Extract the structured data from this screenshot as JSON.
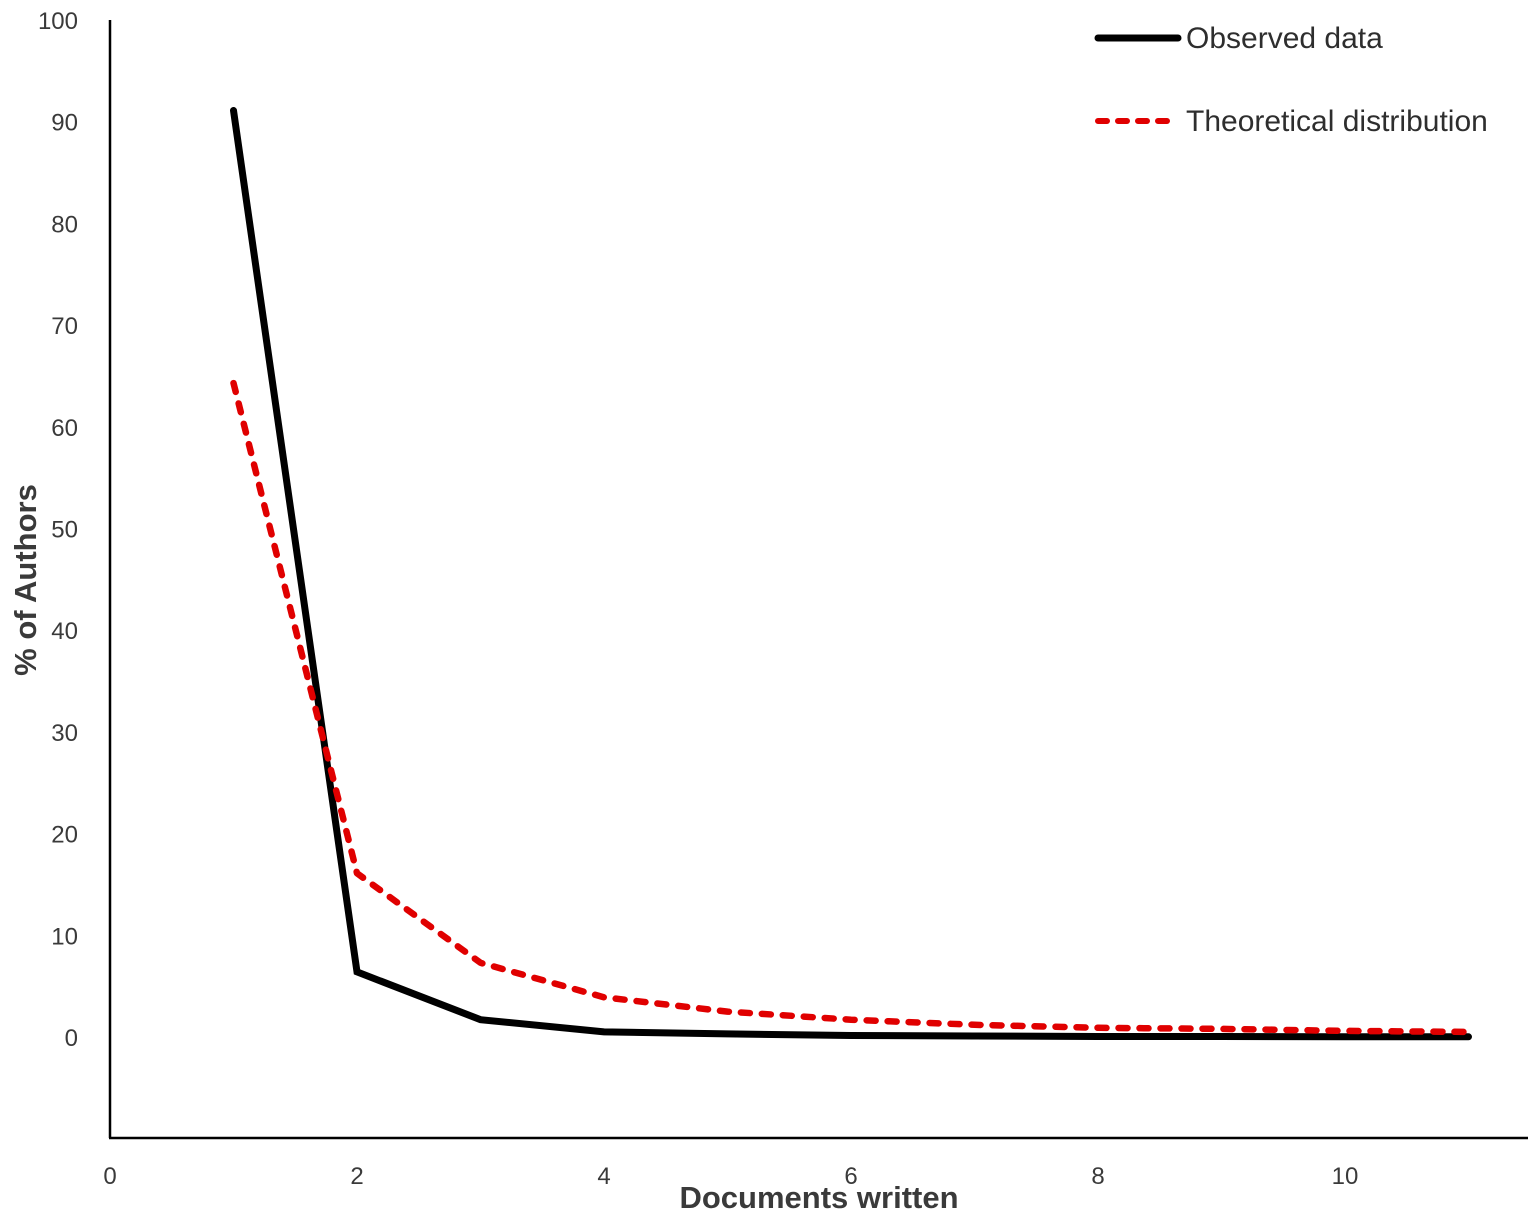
{
  "chart_data": {
    "type": "line",
    "title": "",
    "xlabel": "Documents written",
    "ylabel": "% of Authors",
    "xlim": [
      0,
      11.5
    ],
    "ylim": [
      -10,
      100
    ],
    "x_ticks": [
      0,
      2,
      4,
      6,
      8,
      10
    ],
    "y_ticks": [
      0,
      10,
      20,
      30,
      40,
      50,
      60,
      70,
      80,
      90,
      100
    ],
    "grid": false,
    "legend_position": "top-right",
    "x": [
      1,
      2,
      3,
      4,
      5,
      6,
      7,
      8,
      9,
      10,
      11
    ],
    "series": [
      {
        "name": "Observed data",
        "style": "solid",
        "color": "#000000",
        "values": [
          91.1,
          6.4,
          1.7,
          0.5,
          0.3,
          0.15,
          0.1,
          0.05,
          0.05,
          0.03,
          0.02
        ]
      },
      {
        "name": "Theoretical distribution",
        "style": "dashed",
        "color": "#e00000",
        "values": [
          64.3,
          16.1,
          7.3,
          3.9,
          2.5,
          1.7,
          1.2,
          0.9,
          0.8,
          0.6,
          0.5
        ]
      }
    ]
  },
  "labels": {
    "xlabel": "Documents written",
    "ylabel": "% of Authors",
    "legend": [
      "Observed data",
      "Theoretical distribution"
    ],
    "x_ticks": [
      "0",
      "2",
      "4",
      "6",
      "8",
      "10"
    ],
    "y_ticks": [
      "0",
      "10",
      "20",
      "30",
      "40",
      "50",
      "60",
      "70",
      "80",
      "90",
      "100"
    ]
  },
  "colors": {
    "observed": "#000000",
    "theoretical": "#e00000",
    "theoretical_edge": "#8b0000",
    "axis": "#000000",
    "text": "#3a3a3a"
  }
}
